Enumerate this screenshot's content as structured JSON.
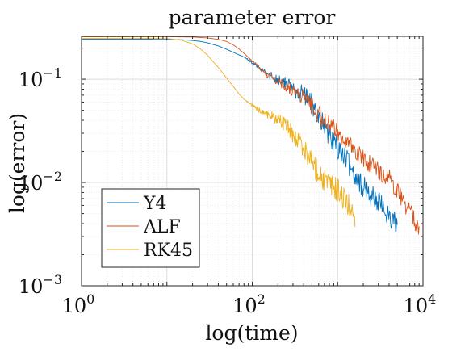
{
  "chart_data": {
    "type": "line",
    "title": "parameter error",
    "xlabel": "log(time)",
    "ylabel": "log(error)",
    "xscale": "log",
    "yscale": "log",
    "xlim": [
      1,
      10000
    ],
    "ylim": [
      0.001,
      0.26
    ],
    "grid": true,
    "minor_grid": true,
    "legend_position": "bottom-left",
    "x_ticks": [
      {
        "base": "10",
        "exp": "0",
        "value": 1
      },
      {
        "base": "10",
        "exp": "2",
        "value": 100
      },
      {
        "base": "10",
        "exp": "4",
        "value": 10000
      }
    ],
    "y_ticks": [
      {
        "base": "10",
        "exp": "−3",
        "value": 0.001
      },
      {
        "base": "10",
        "exp": "−2",
        "value": 0.01
      },
      {
        "base": "10",
        "exp": "−1",
        "value": 0.1
      }
    ],
    "series": [
      {
        "name": "Y4",
        "color": "#0072BD",
        "noise": 0.11,
        "x": [
          1,
          5,
          10,
          15,
          20,
          25,
          30,
          40,
          50,
          60,
          70,
          80,
          90,
          100,
          120,
          150,
          200,
          250,
          300,
          400,
          500,
          600,
          700,
          800,
          1000,
          1200,
          1500,
          2000,
          2500,
          3000,
          3500,
          4000,
          4500,
          5000
        ],
        "y": [
          0.244,
          0.244,
          0.243,
          0.241,
          0.237,
          0.232,
          0.225,
          0.21,
          0.195,
          0.182,
          0.172,
          0.164,
          0.155,
          0.144,
          0.128,
          0.112,
          0.1,
          0.09,
          0.082,
          0.071,
          0.058,
          0.045,
          0.034,
          0.028,
          0.022,
          0.018,
          0.013,
          0.009,
          0.0075,
          0.0065,
          0.0055,
          0.0048,
          0.0042,
          0.004
        ]
      },
      {
        "name": "ALF",
        "color": "#D95319",
        "noise": 0.09,
        "x": [
          1,
          5,
          10,
          20,
          30,
          40,
          50,
          60,
          70,
          80,
          100,
          120,
          150,
          200,
          250,
          300,
          400,
          500,
          600,
          700,
          800,
          1000,
          1200,
          1500,
          2000,
          2500,
          3000,
          4000,
          5000,
          6000,
          7000,
          8000,
          9000
        ],
        "y": [
          0.258,
          0.258,
          0.258,
          0.256,
          0.251,
          0.243,
          0.232,
          0.215,
          0.196,
          0.178,
          0.15,
          0.13,
          0.11,
          0.095,
          0.085,
          0.078,
          0.068,
          0.056,
          0.046,
          0.04,
          0.036,
          0.031,
          0.026,
          0.021,
          0.017,
          0.015,
          0.013,
          0.011,
          0.0085,
          0.0065,
          0.0052,
          0.0042,
          0.0034
        ]
      },
      {
        "name": "RK45",
        "color": "#EDB120",
        "noise": 0.12,
        "x": [
          1,
          5,
          10,
          12,
          15,
          20,
          25,
          30,
          40,
          50,
          60,
          70,
          80,
          100,
          120,
          150,
          200,
          250,
          300,
          400,
          500,
          600,
          700,
          800,
          1000,
          1200,
          1500,
          1600
        ],
        "y": [
          0.249,
          0.249,
          0.247,
          0.244,
          0.238,
          0.22,
          0.195,
          0.17,
          0.13,
          0.103,
          0.085,
          0.072,
          0.064,
          0.056,
          0.05,
          0.046,
          0.041,
          0.036,
          0.029,
          0.022,
          0.016,
          0.0125,
          0.0105,
          0.0095,
          0.0085,
          0.0068,
          0.0052,
          0.0045
        ]
      }
    ]
  }
}
